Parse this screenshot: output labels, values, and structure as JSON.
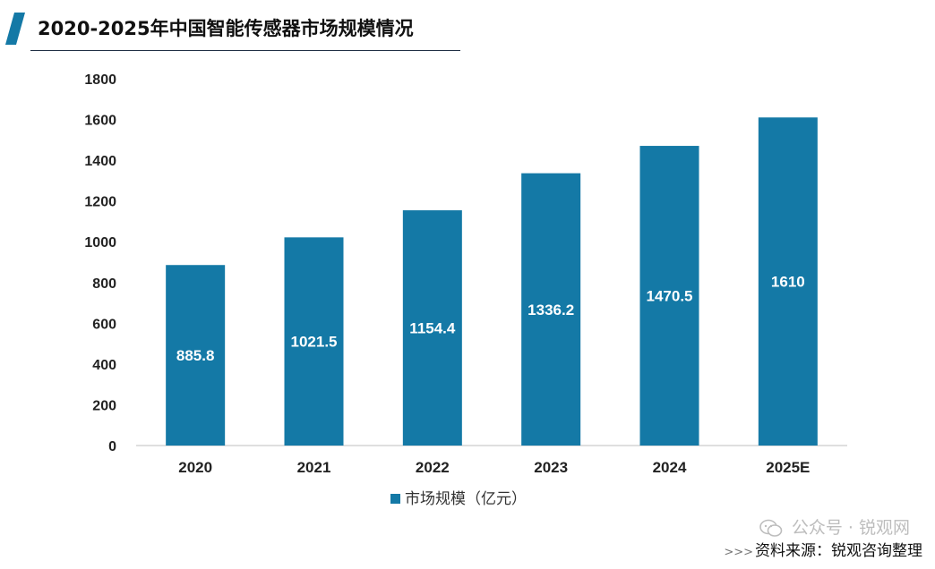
{
  "title": "2020-2025年中国智能传感器市场规模情况",
  "source_text": "资料来源：锐观咨询整理",
  "wechat_tag": "公众号 · 锐观网",
  "colors": {
    "bar": "#1479a6",
    "accent": "#1479a6",
    "axis": "#bfbfbf"
  },
  "chart_data": {
    "type": "bar",
    "categories": [
      "2020",
      "2021",
      "2022",
      "2023",
      "2024",
      "2025E"
    ],
    "series": [
      {
        "name": "市场规模（亿元）",
        "values": [
          885.8,
          1021.5,
          1154.4,
          1336.2,
          1470.5,
          1610
        ]
      }
    ],
    "data_labels": [
      "885.8",
      "1021.5",
      "1154.4",
      "1336.2",
      "1470.5",
      "1610"
    ],
    "y_ticks": [
      "0",
      "200",
      "400",
      "600",
      "800",
      "1000",
      "1200",
      "1400",
      "1600",
      "1800"
    ],
    "ylim": [
      0,
      1800
    ],
    "grid": false,
    "legend_position": "bottom"
  }
}
